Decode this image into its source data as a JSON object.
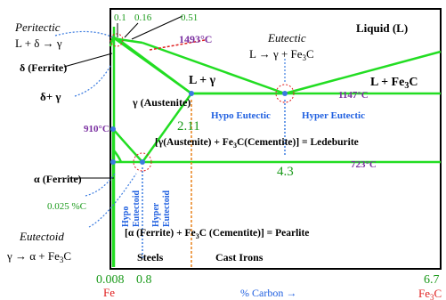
{
  "colors": {
    "phase_line": "#22dd22",
    "bold_label": "#000000",
    "purple": "#7a2fa0",
    "green_text": "#1a9a1a",
    "blue": "#2060e0",
    "red": "#e02020",
    "orange": "#e8821a",
    "dot_blue": "#3a7be0"
  },
  "top_ticks": {
    "t1": "0.1",
    "t2": "0.16",
    "t3": "0.51"
  },
  "peritectic": {
    "title": "Peritectic",
    "reaction": "L + δ → γ",
    "temp": "1493°C"
  },
  "eutectic": {
    "title": "Eutectic",
    "reaction_main": "L → γ + Fe",
    "reaction_sub": "3",
    "reaction_end": "C"
  },
  "regions": {
    "liquid": "Liquid (L)",
    "delta_ferrite": "δ (Ferrite)",
    "delta_gamma": "δ+ γ",
    "l_gamma": "L + γ",
    "l_fe3c_main": "L + Fe",
    "l_fe3c_sub": "3",
    "l_fe3c_end": "C",
    "austenite": "γ (Austenite)",
    "alpha_ferrite": "α (Ferrite)"
  },
  "temps": {
    "t1147": "1147°C",
    "t910": "910°C",
    "t723": "723°C"
  },
  "compositions": {
    "c211": "2.11",
    "c43": "4.3",
    "c0025": "0.025 %C"
  },
  "eutectic_labels": {
    "hypo": "Hypo Eutectic",
    "hyper": "Hyper Eutectic"
  },
  "ledeburite": {
    "a": "[γ(Austenite) + Fe",
    "sub": "3",
    "b": "C(Cementite)] = Ledeburite"
  },
  "eutectoid_labels": {
    "hypo1": "Hypo",
    "hypo2": "Eutectoid",
    "hyper1": "Hyper",
    "hyper2": "Eutectoid"
  },
  "pearlite": {
    "a": "[α (Ferrite) + Fe",
    "sub": "3",
    "b": "C (Cementite)] = Pearlite"
  },
  "eutectoid": {
    "title": "Eutectoid",
    "reaction_main": "γ → α + Fe",
    "reaction_sub": "3",
    "reaction_end": "C"
  },
  "bottom": {
    "steels": "Steels",
    "cast_irons": "Cast Irons",
    "x0008": "0.008",
    "x08": "0.8",
    "x67": "6.7",
    "fe": "Fe",
    "fe3c_main": "Fe",
    "fe3c_sub": "3",
    "fe3c_end": "C",
    "axis_label": "% Carbon  →"
  }
}
